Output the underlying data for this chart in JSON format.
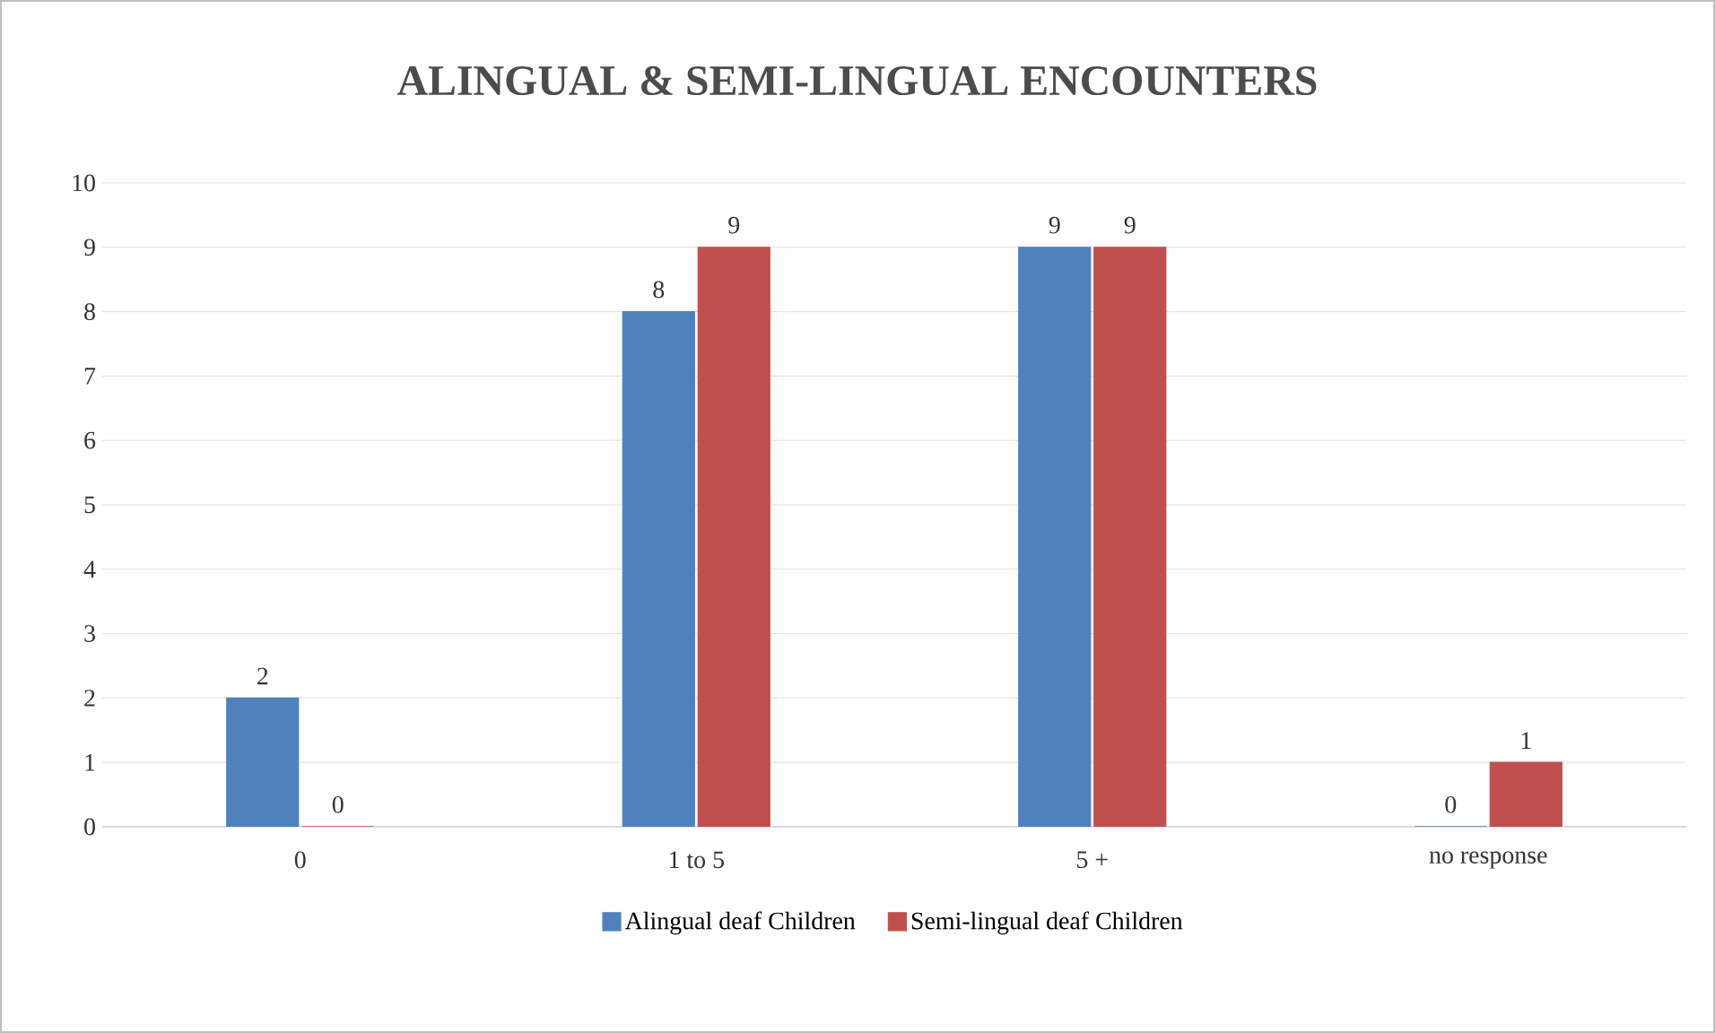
{
  "chart_data": {
    "type": "bar",
    "title": "ALINGUAL & SEMI-LINGUAL ENCOUNTERS",
    "categories": [
      "0",
      "1 to 5",
      "5 +",
      "no response"
    ],
    "series": [
      {
        "name": "Alingual deaf Children",
        "color": "#4f81bd",
        "values": [
          2,
          8,
          9,
          0
        ]
      },
      {
        "name": "Semi-lingual deaf Children",
        "color": "#c0504d",
        "values": [
          0,
          9,
          9,
          1
        ]
      }
    ],
    "ylim": [
      0,
      10
    ],
    "yticks": [
      0,
      1,
      2,
      3,
      4,
      5,
      6,
      7,
      8,
      9,
      10
    ],
    "grid": "y",
    "legend": "bottom",
    "data_labels": true
  }
}
